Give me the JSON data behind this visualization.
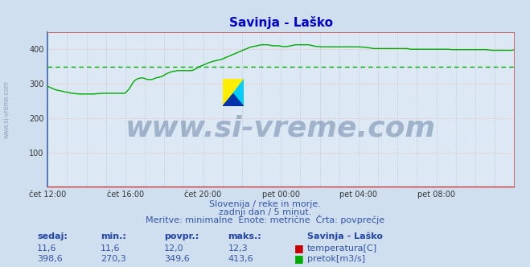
{
  "title": "Savinja - Laško",
  "title_color": "#0000cc",
  "bg_color": "#d0dff0",
  "plot_bg_color": "#dce8f4",
  "line_color_pretok": "#00aa00",
  "line_color_temp": "#cc0000",
  "avg_line_color": "#00aa00",
  "avg_value": 349.6,
  "ylim": [
    0,
    450
  ],
  "yticks": [
    100,
    200,
    300,
    400
  ],
  "grid_color_h": "#ffaaaa",
  "grid_color_v": "#aabbd0",
  "spine_left_color": "#4466aa",
  "spine_bottom_color": "#cc3333",
  "spine_top_color": "#cc3333",
  "spine_right_color": "#cc3333",
  "watermark_text": "www.si-vreme.com",
  "watermark_color": "#1a3a6e",
  "watermark_alpha": 0.3,
  "watermark_fontsize": 26,
  "subtitle1": "Slovenija / reke in morje.",
  "subtitle2": "zadnji dan / 5 minut.",
  "subtitle3": "Meritve: minimalne  Enote: metrične  Črta: povprečje",
  "subtitle_color": "#3355aa",
  "footer_labels": [
    "sedaj:",
    "min.:",
    "povpr.:",
    "maks.:",
    "Savinja - Laško"
  ],
  "footer_row1": [
    "11,6",
    "11,6",
    "12,0",
    "12,3"
  ],
  "footer_row2": [
    "398,6",
    "270,3",
    "349,6",
    "413,6"
  ],
  "footer_label1": "temperatura[C]",
  "footer_label2": "pretok[m3/s]",
  "footer_color": "#3355aa",
  "footer_bold_color": "#2244aa",
  "tick_labels": [
    "čet 12:00",
    "čet 16:00",
    "čet 20:00",
    "pet 00:00",
    "pet 04:00",
    "pet 08:00"
  ],
  "tick_positions": [
    0,
    48,
    96,
    144,
    192,
    240
  ],
  "n_points": 289,
  "pretok_data": [
    293,
    290,
    288,
    286,
    284,
    282,
    281,
    280,
    279,
    278,
    277,
    276,
    275,
    274,
    273,
    272,
    272,
    271,
    271,
    270,
    270,
    270,
    270,
    270,
    270,
    270,
    270,
    270,
    270,
    270,
    271,
    271,
    271,
    272,
    272,
    272,
    272,
    272,
    272,
    272,
    272,
    272,
    272,
    272,
    272,
    272,
    272,
    272,
    273,
    278,
    283,
    290,
    298,
    305,
    310,
    313,
    315,
    316,
    317,
    316,
    315,
    313,
    312,
    312,
    312,
    313,
    315,
    317,
    318,
    319,
    320,
    322,
    325,
    328,
    330,
    332,
    334,
    335,
    336,
    337,
    338,
    338,
    338,
    338,
    338,
    338,
    338,
    338,
    338,
    338,
    340,
    342,
    345,
    348,
    350,
    352,
    354,
    356,
    358,
    360,
    362,
    363,
    365,
    366,
    367,
    368,
    369,
    370,
    372,
    374,
    376,
    378,
    380,
    382,
    384,
    386,
    388,
    390,
    392,
    394,
    396,
    398,
    400,
    402,
    404,
    406,
    407,
    408,
    409,
    410,
    411,
    412,
    413,
    413,
    413,
    413,
    413,
    412,
    411,
    410,
    410,
    410,
    410,
    410,
    409,
    408,
    408,
    408,
    408,
    409,
    410,
    411,
    412,
    413,
    413,
    413,
    413,
    413,
    413,
    413,
    413,
    413,
    412,
    411,
    410,
    409,
    408,
    408,
    408,
    407,
    407,
    407,
    407,
    407,
    407,
    407,
    407,
    407,
    407,
    407,
    407,
    407,
    407,
    407,
    407,
    407,
    407,
    407,
    407,
    407,
    407,
    407,
    407,
    407,
    406,
    406,
    406,
    405,
    404,
    404,
    403,
    402,
    402,
    402,
    402,
    402,
    402,
    402,
    402,
    402,
    402,
    402,
    402,
    402,
    402,
    402,
    402,
    402,
    402,
    402,
    402,
    402,
    402,
    401,
    400,
    400,
    400,
    400,
    400,
    400,
    400,
    400,
    400,
    400,
    400,
    400,
    400,
    400,
    400,
    400,
    400,
    400,
    400,
    400,
    400,
    400,
    400,
    400,
    400,
    399,
    399,
    399,
    399,
    399,
    399,
    399,
    399,
    399,
    399,
    399,
    399,
    399,
    399,
    399,
    399,
    399,
    399,
    399,
    399,
    399,
    399,
    399,
    398,
    398,
    397,
    397,
    397,
    397,
    397,
    397,
    397,
    397,
    397,
    397,
    397,
    397,
    397,
    397,
    399
  ]
}
